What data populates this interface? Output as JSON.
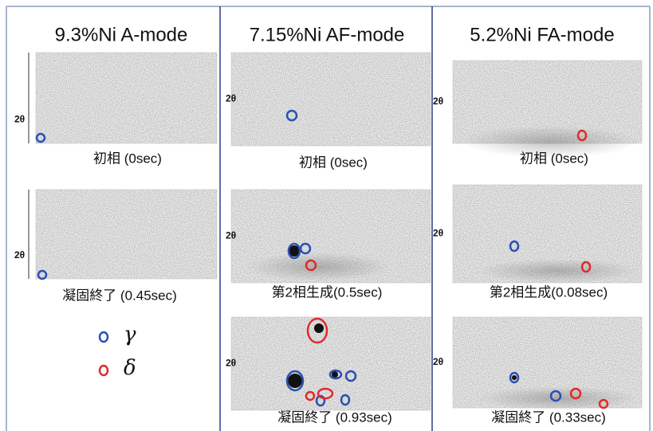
{
  "columns": [
    {
      "title": "9.3%Ni A-mode",
      "panels": [
        {
          "axis_label": "2θ",
          "caption": "初相 (0sec)"
        },
        {
          "axis_label": "2θ",
          "caption": "凝固終了 (0.45sec)"
        }
      ]
    },
    {
      "title": "7.15%Ni AF-mode",
      "panels": [
        {
          "axis_label": "2θ",
          "caption": "初相 (0sec)"
        },
        {
          "axis_label": "2θ",
          "caption": "第2相生成(0.5sec)"
        },
        {
          "axis_label": "2θ",
          "caption": "凝固終了 (0.93sec)"
        }
      ]
    },
    {
      "title": "5.2%Ni FA-mode",
      "panels": [
        {
          "axis_label": "2θ",
          "caption": "初相 (0sec)"
        },
        {
          "axis_label": "2θ",
          "caption": "第2相生成(0.08sec)"
        },
        {
          "axis_label": "2θ",
          "caption": "凝固終了 (0.33sec)"
        }
      ]
    }
  ],
  "legend": [
    {
      "symbol": "γ"
    },
    {
      "symbol": "δ"
    }
  ]
}
